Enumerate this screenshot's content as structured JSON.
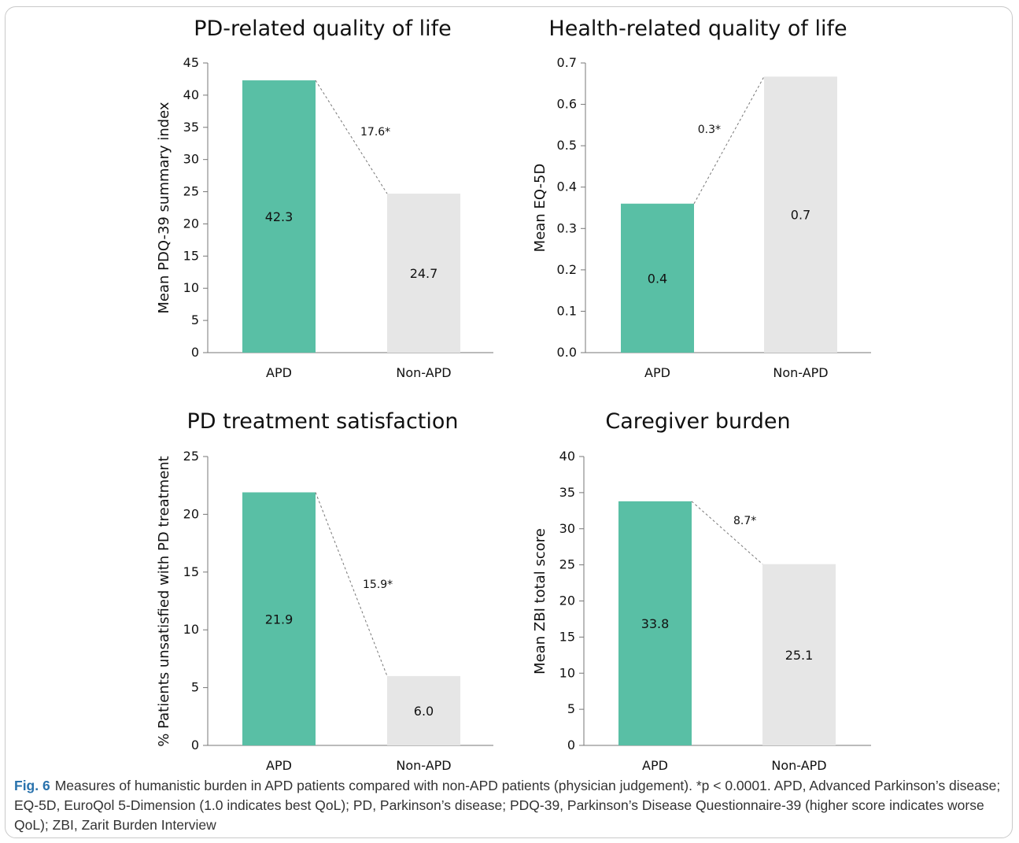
{
  "chart_data": [
    {
      "type": "bar",
      "title": "PD-related quality of life",
      "ylabel": "Mean PDQ-39 summary index",
      "categories": [
        "APD",
        "Non-APD"
      ],
      "values": [
        42.3,
        24.7
      ],
      "value_labels": [
        "42.3",
        "24.7"
      ],
      "difference_label": "17.6*",
      "ylim": [
        0,
        45
      ],
      "yticks": [
        "0",
        "5",
        "10",
        "15",
        "20",
        "25",
        "30",
        "35",
        "40",
        "45"
      ],
      "bar_colors": [
        "#59bfa5",
        "#e6e6e6"
      ],
      "grid": false
    },
    {
      "type": "bar",
      "title": "Health-related quality of life",
      "ylabel": "Mean EQ-5D",
      "categories": [
        "APD",
        "Non-APD"
      ],
      "values": [
        0.36,
        0.667
      ],
      "value_labels": [
        "0.4",
        "0.7"
      ],
      "difference_label": "0.3*",
      "ylim": [
        0,
        0.7
      ],
      "yticks": [
        "0.0",
        "0.1",
        "0.2",
        "0.3",
        "0.4",
        "0.5",
        "0.6",
        "0.7"
      ],
      "bar_colors": [
        "#59bfa5",
        "#e6e6e6"
      ],
      "grid": false
    },
    {
      "type": "bar",
      "title": "PD treatment satisfaction",
      "ylabel": "% Patients unsatisfied with PD treatment",
      "categories": [
        "APD",
        "Non-APD"
      ],
      "values": [
        21.9,
        6.0
      ],
      "value_labels": [
        "21.9",
        "6.0"
      ],
      "difference_label": "15.9*",
      "ylim": [
        0,
        25
      ],
      "yticks": [
        "0",
        "5",
        "10",
        "15",
        "20",
        "25"
      ],
      "bar_colors": [
        "#59bfa5",
        "#e6e6e6"
      ],
      "grid": false
    },
    {
      "type": "bar",
      "title": "Caregiver burden",
      "ylabel": "Mean ZBI total score",
      "categories": [
        "APD",
        "Non-APD"
      ],
      "values": [
        33.8,
        25.1
      ],
      "value_labels": [
        "33.8",
        "25.1"
      ],
      "difference_label": "8.7*",
      "ylim": [
        0,
        40
      ],
      "yticks": [
        "0",
        "5",
        "10",
        "15",
        "20",
        "25",
        "30",
        "35",
        "40"
      ],
      "bar_colors": [
        "#59bfa5",
        "#e6e6e6"
      ],
      "grid": false
    }
  ],
  "caption": {
    "label": "Fig. 6",
    "text": "Measures of humanistic burden in APD patients compared with non-APD patients (physician judgement). *p < 0.0001. APD, Advanced Parkinson’s disease; EQ-5D, EuroQol 5-Dimension (1.0 indicates best QoL); PD, Parkinson’s disease; PDQ-39, Parkinson’s Disease Questionnaire-39 (higher score indicates worse QoL); ZBI, Zarit Burden Interview"
  }
}
